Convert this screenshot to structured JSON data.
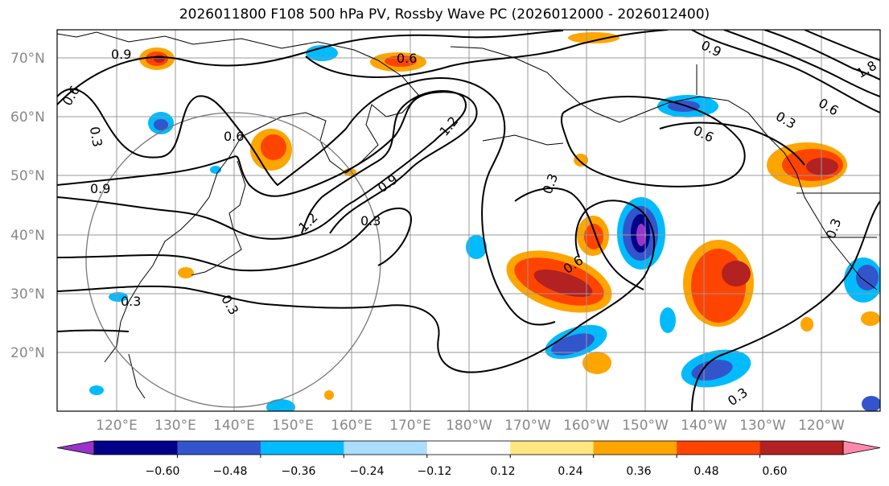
{
  "title": "2026011800 F108 500 hPa PV, Rossby Wave PC (2026012000 - 2026012400)",
  "lat_labels": [
    "70°N",
    "60°N",
    "50°N",
    "40°N",
    "30°N",
    "20°N"
  ],
  "lon_labels": [
    "120°E",
    "130°E",
    "140°E",
    "150°E",
    "160°E",
    "170°E",
    "180°W",
    "170°W",
    "160°W",
    "150°W",
    "140°W",
    "130°W",
    "120°W"
  ],
  "contour_labels": [
    "0.9",
    "0.6",
    "0.3",
    "0.6",
    "0.9",
    "1.2",
    "0.3",
    "0.9",
    "1.2",
    "0.6",
    "0.3",
    "0.6",
    "0.3",
    "0.3",
    "0.9",
    "1.8",
    "0.6",
    "0.3",
    "0.3",
    "0.3",
    "0.6"
  ],
  "colorbar": {
    "tick_labels": [
      "−0.60",
      "−0.48",
      "−0.36",
      "−0.24",
      "−0.12",
      "0.12",
      "0.24",
      "0.36",
      "0.48",
      "0.60"
    ],
    "colors": [
      "#9933cc",
      "#000088",
      "#3355cc",
      "#00bbff",
      "#aaddff",
      "#ffffff",
      "#ffe680",
      "#ffa500",
      "#ff4400",
      "#b22222",
      "#ff88aa"
    ]
  }
}
